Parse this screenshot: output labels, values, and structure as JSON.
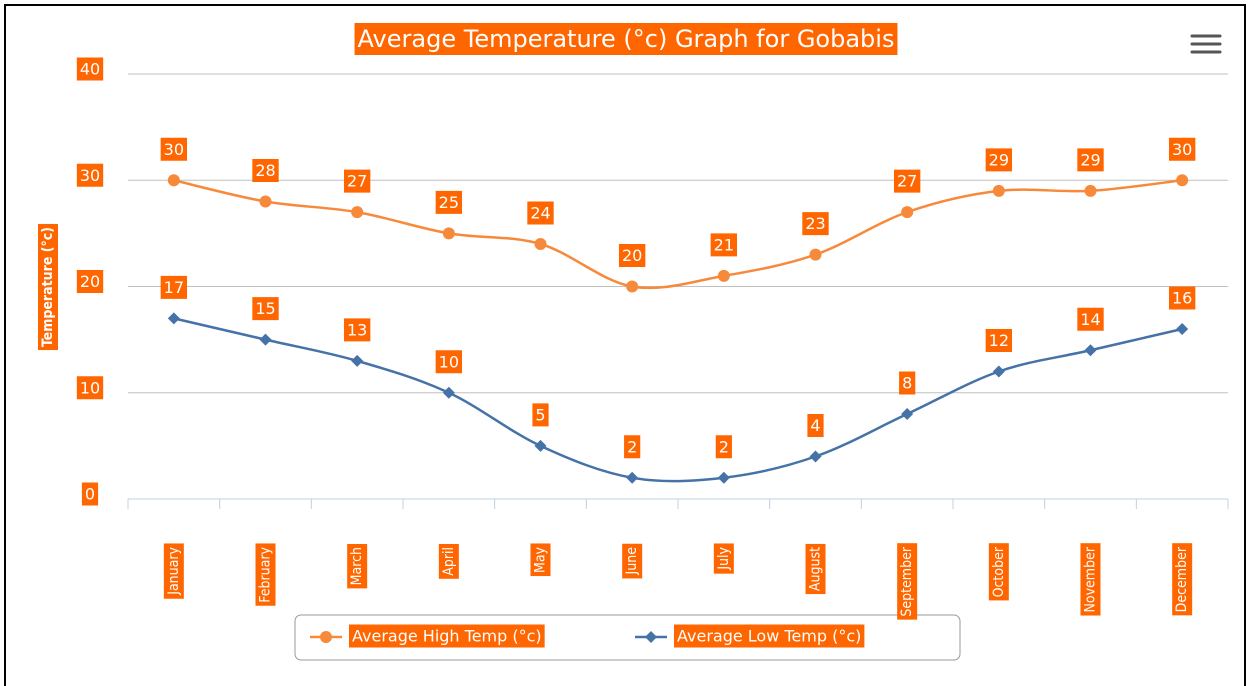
{
  "chart_data": {
    "type": "line",
    "title": "Average Temperature (°c) Graph for Gobabis",
    "y_axis_label": "Temperature (°c)",
    "categories": [
      "January",
      "February",
      "March",
      "April",
      "May",
      "June",
      "July",
      "August",
      "September",
      "October",
      "November",
      "December"
    ],
    "series": [
      {
        "name": "Average High Temp (°c)",
        "color": "#f7893b",
        "marker": "circle",
        "values": [
          30,
          28,
          27,
          25,
          24,
          20,
          21,
          23,
          27,
          29,
          29,
          30
        ]
      },
      {
        "name": "Average Low Temp (°c)",
        "color": "#4572a7",
        "marker": "diamond",
        "values": [
          17,
          15,
          13,
          10,
          5,
          2,
          2,
          4,
          8,
          12,
          14,
          16
        ]
      }
    ],
    "ylim": [
      0,
      40
    ],
    "yticks": [
      0,
      10,
      20,
      30,
      40
    ],
    "grid": true
  }
}
